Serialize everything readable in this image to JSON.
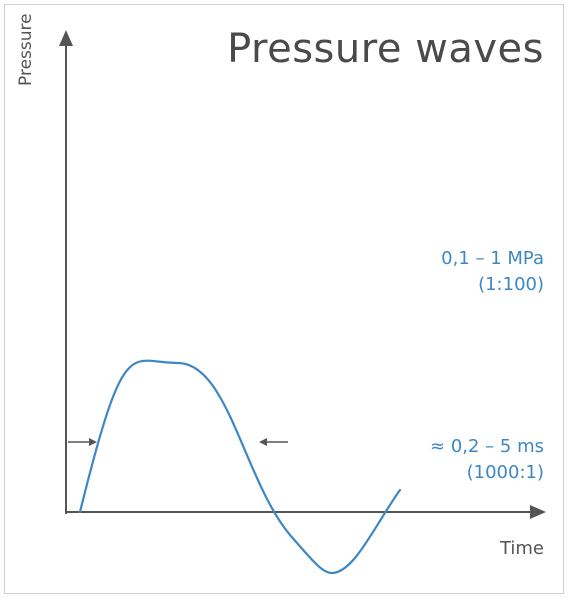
{
  "title": "Pressure waves",
  "axes": {
    "y_label": "Pressure",
    "x_label": "Time"
  },
  "annotations": {
    "pressure_range": "0,1 – 1 MPa",
    "pressure_ratio": "(1:100)",
    "duration_range": "≈ 0,2 – 5 ms",
    "duration_ratio": "(1000:1)"
  },
  "colors": {
    "wave": "#3d88c4",
    "annotation": "#3d88c4",
    "axis": "#555555",
    "title": "#4a4a4a"
  }
}
